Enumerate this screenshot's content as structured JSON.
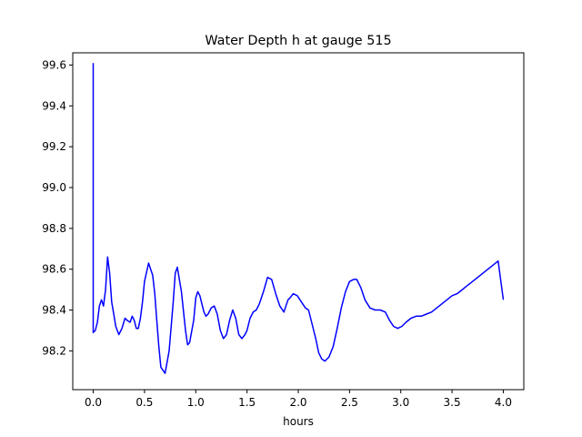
{
  "chart_data": {
    "type": "line",
    "title": "Water Depth h at gauge 515",
    "xlabel": "hours",
    "ylabel": "",
    "xlim": [
      -0.2,
      4.2
    ],
    "ylim": [
      98.01,
      99.66
    ],
    "xticks": [
      0.0,
      0.5,
      1.0,
      1.5,
      2.0,
      2.5,
      3.0,
      3.5,
      4.0
    ],
    "xtick_labels": [
      "0.0",
      "0.5",
      "1.0",
      "1.5",
      "2.0",
      "2.5",
      "3.0",
      "3.5",
      "4.0"
    ],
    "yticks": [
      98.2,
      98.4,
      98.6,
      98.8,
      99.0,
      99.2,
      99.4,
      99.6
    ],
    "ytick_labels": [
      "98.2",
      "98.4",
      "98.6",
      "98.8",
      "99.0",
      "99.2",
      "99.4",
      "99.6"
    ],
    "grid": false,
    "series": [
      {
        "color": "#0000ff",
        "x": [
          0.0,
          0.0,
          0.02,
          0.04,
          0.06,
          0.08,
          0.1,
          0.12,
          0.14,
          0.16,
          0.18,
          0.2,
          0.22,
          0.25,
          0.28,
          0.31,
          0.33,
          0.36,
          0.38,
          0.4,
          0.42,
          0.44,
          0.46,
          0.48,
          0.5,
          0.54,
          0.58,
          0.6,
          0.62,
          0.64,
          0.66,
          0.7,
          0.74,
          0.78,
          0.8,
          0.82,
          0.86,
          0.9,
          0.92,
          0.94,
          0.98,
          1.0,
          1.02,
          1.04,
          1.06,
          1.08,
          1.1,
          1.12,
          1.15,
          1.18,
          1.21,
          1.24,
          1.27,
          1.3,
          1.33,
          1.36,
          1.39,
          1.42,
          1.45,
          1.48,
          1.5,
          1.53,
          1.56,
          1.59,
          1.62,
          1.66,
          1.7,
          1.74,
          1.78,
          1.82,
          1.86,
          1.9,
          1.92,
          1.95,
          1.99,
          2.03,
          2.07,
          2.1,
          2.13,
          2.17,
          2.2,
          2.23,
          2.26,
          2.3,
          2.34,
          2.38,
          2.42,
          2.46,
          2.5,
          2.54,
          2.57,
          2.61,
          2.65,
          2.7,
          2.75,
          2.8,
          2.85,
          2.89,
          2.93,
          2.97,
          3.01,
          3.05,
          3.1,
          3.15,
          3.2,
          3.25,
          3.3,
          3.35,
          3.4,
          3.45,
          3.5,
          3.55,
          3.6,
          3.65,
          3.7,
          3.75,
          3.8,
          3.85,
          3.9,
          3.95,
          4.0
        ],
        "y": [
          99.61,
          98.29,
          98.3,
          98.34,
          98.42,
          98.45,
          98.42,
          98.5,
          98.66,
          98.58,
          98.44,
          98.38,
          98.32,
          98.28,
          98.31,
          98.36,
          98.35,
          98.34,
          98.37,
          98.35,
          98.31,
          98.31,
          98.36,
          98.44,
          98.54,
          98.63,
          98.57,
          98.48,
          98.35,
          98.22,
          98.12,
          98.09,
          98.2,
          98.44,
          98.58,
          98.61,
          98.49,
          98.3,
          98.23,
          98.24,
          98.35,
          98.46,
          98.49,
          98.47,
          98.43,
          98.39,
          98.37,
          98.38,
          98.41,
          98.42,
          98.38,
          98.3,
          98.26,
          98.28,
          98.35,
          98.4,
          98.36,
          98.28,
          98.26,
          98.28,
          98.3,
          98.36,
          98.39,
          98.4,
          98.43,
          98.49,
          98.56,
          98.55,
          98.48,
          98.42,
          98.39,
          98.45,
          98.46,
          98.48,
          98.47,
          98.44,
          98.41,
          98.4,
          98.34,
          98.26,
          98.19,
          98.16,
          98.15,
          98.17,
          98.22,
          98.31,
          98.41,
          98.49,
          98.54,
          98.55,
          98.55,
          98.51,
          98.45,
          98.41,
          98.4,
          98.4,
          98.39,
          98.35,
          98.32,
          98.31,
          98.32,
          98.34,
          98.36,
          98.37,
          98.37,
          98.38,
          98.39,
          98.41,
          98.43,
          98.45,
          98.47,
          98.48,
          98.5,
          98.52,
          98.54,
          98.56,
          98.58,
          98.6,
          98.62,
          98.64,
          98.45
        ]
      }
    ]
  }
}
